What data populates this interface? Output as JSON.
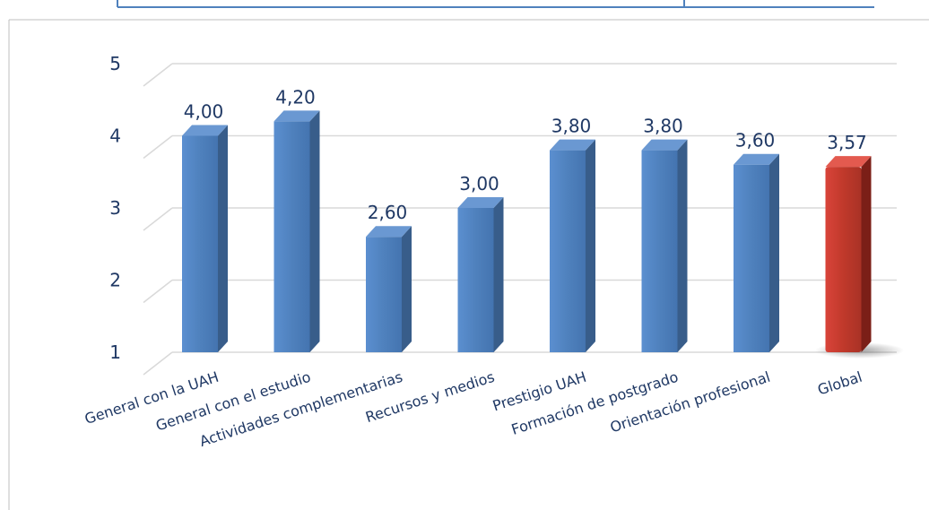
{
  "chart_data": {
    "type": "bar",
    "title": "",
    "xlabel": "",
    "ylabel": "",
    "ylim": [
      1,
      5
    ],
    "yticks": [
      "1",
      "2",
      "3",
      "4",
      "5"
    ],
    "grid": true,
    "legend": "none",
    "categories": [
      "General con la UAH",
      "General con el estudio",
      "Actividades complementarias",
      "Recursos y medios",
      "Prestigio UAH",
      "Formación de postgrado",
      "Orientación profesional",
      "Global"
    ],
    "values": [
      4.0,
      4.2,
      2.6,
      3.0,
      3.8,
      3.8,
      3.6,
      3.57
    ],
    "data_labels": [
      "4,00",
      "4,20",
      "2,60",
      "3,00",
      "3,80",
      "3,80",
      "3,60",
      "3,57"
    ],
    "colors": {
      "bar": "#4f81bd",
      "highlight": "#c0392b",
      "text": "#1f3864",
      "grid": "#d9d9d9",
      "frame": "#4f81bd"
    },
    "highlight_category": "Global"
  }
}
